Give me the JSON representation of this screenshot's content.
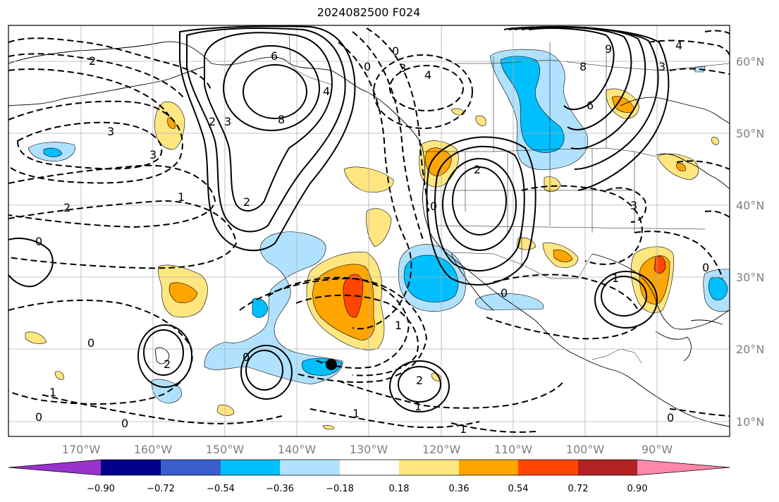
{
  "title": "2024082500 F024",
  "lat_ticks": [
    {
      "label": "60°N"
    },
    {
      "label": "50°N"
    },
    {
      "label": "40°N"
    },
    {
      "label": "30°N"
    },
    {
      "label": "20°N"
    },
    {
      "label": "10°N"
    }
  ],
  "lon_ticks": [
    {
      "label": "170°W"
    },
    {
      "label": "160°W"
    },
    {
      "label": "150°W"
    },
    {
      "label": "140°W"
    },
    {
      "label": "130°W"
    },
    {
      "label": "120°W"
    },
    {
      "label": "110°W"
    },
    {
      "label": "100°W"
    },
    {
      "label": "90°W"
    }
  ],
  "colorbar": {
    "colors": [
      "#9932cc",
      "#00008b",
      "#3a5fcd",
      "#00bfff",
      "#b0e2ff",
      "#ffffff",
      "#ffe680",
      "#ffa500",
      "#ff4500",
      "#b22222",
      "#ff88aa"
    ],
    "tick_labels": [
      "−0.90",
      "−0.72",
      "−0.54",
      "−0.36",
      "−0.18",
      "0.18",
      "0.36",
      "0.54",
      "0.72",
      "0.90"
    ]
  },
  "contour_labels": [
    "6",
    "8",
    "4",
    "3",
    "2",
    "0",
    "9",
    "8",
    "3",
    "4",
    "6",
    "3",
    "0",
    "3",
    "4",
    "2",
    "3",
    "2",
    "2",
    "0",
    "1",
    "0",
    "2",
    "1",
    "1",
    "0",
    "0",
    "0",
    "2",
    "1",
    "1",
    "0",
    "1",
    "1",
    "0",
    "3",
    "0",
    "2",
    "0"
  ],
  "marker": {
    "name": "storm-center"
  },
  "fill_colors": {
    "light_blue": "#b0e2ff",
    "blue": "#00bfff",
    "yellow": "#ffe680",
    "orange": "#ffa500",
    "red": "#ff4500"
  }
}
